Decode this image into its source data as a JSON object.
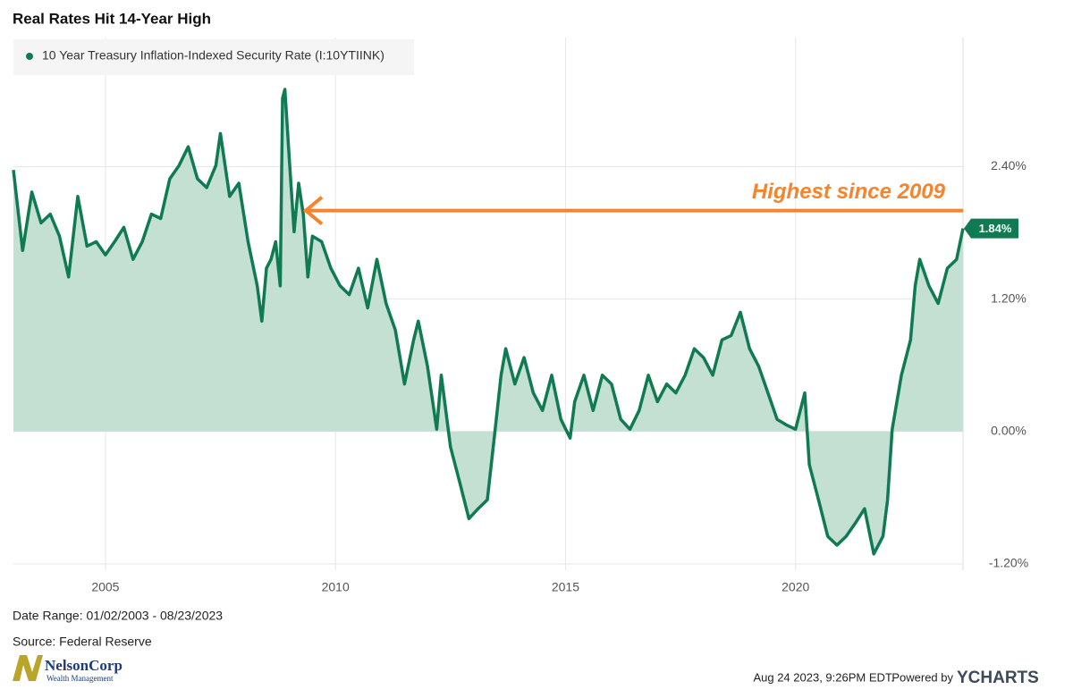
{
  "chart_data": {
    "type": "line",
    "title": "Real Rates Hit 14-Year High",
    "annotation": "Highest since 2009",
    "series": [
      {
        "name": "10 Year Treasury Inflation-Indexed Security Rate (I:10YTIINK)",
        "color": "#107a53",
        "fill": "#c3e0d3",
        "x": [
          2003.0,
          2003.2,
          2003.4,
          2003.6,
          2003.8,
          2004.0,
          2004.2,
          2004.4,
          2004.6,
          2004.8,
          2005.0,
          2005.2,
          2005.4,
          2005.6,
          2005.8,
          2006.0,
          2006.2,
          2006.4,
          2006.6,
          2006.8,
          2007.0,
          2007.2,
          2007.4,
          2007.5,
          2007.7,
          2007.9,
          2008.1,
          2008.3,
          2008.4,
          2008.5,
          2008.6,
          2008.7,
          2008.8,
          2008.85,
          2008.9,
          2009.0,
          2009.1,
          2009.2,
          2009.3,
          2009.4,
          2009.5,
          2009.7,
          2009.9,
          2010.1,
          2010.3,
          2010.5,
          2010.7,
          2010.9,
          2011.1,
          2011.3,
          2011.5,
          2011.7,
          2011.8,
          2012.0,
          2012.2,
          2012.3,
          2012.5,
          2012.7,
          2012.9,
          2013.1,
          2013.3,
          2013.45,
          2013.6,
          2013.7,
          2013.9,
          2014.1,
          2014.3,
          2014.5,
          2014.7,
          2014.9,
          2015.1,
          2015.2,
          2015.4,
          2015.6,
          2015.8,
          2016.0,
          2016.2,
          2016.4,
          2016.6,
          2016.8,
          2017.0,
          2017.2,
          2017.4,
          2017.6,
          2017.8,
          2018.0,
          2018.2,
          2018.4,
          2018.6,
          2018.8,
          2019.0,
          2019.2,
          2019.4,
          2019.6,
          2019.8,
          2020.0,
          2020.2,
          2020.3,
          2020.5,
          2020.7,
          2020.9,
          2021.1,
          2021.3,
          2021.5,
          2021.7,
          2021.9,
          2022.0,
          2022.1,
          2022.3,
          2022.5,
          2022.6,
          2022.7,
          2022.9,
          2023.1,
          2023.3,
          2023.5,
          2023.64
        ],
        "values": [
          2.37,
          1.64,
          2.17,
          1.89,
          1.97,
          1.77,
          1.4,
          2.13,
          1.68,
          1.72,
          1.6,
          1.72,
          1.85,
          1.56,
          1.72,
          1.97,
          1.93,
          2.29,
          2.41,
          2.58,
          2.29,
          2.21,
          2.41,
          2.7,
          2.13,
          2.25,
          1.72,
          1.32,
          1.0,
          1.48,
          1.56,
          1.72,
          1.32,
          3.02,
          3.1,
          2.45,
          1.81,
          2.25,
          1.97,
          1.4,
          1.77,
          1.72,
          1.48,
          1.32,
          1.24,
          1.48,
          1.12,
          1.56,
          1.16,
          0.92,
          0.43,
          0.83,
          1.0,
          0.59,
          0.02,
          0.51,
          -0.14,
          -0.46,
          -0.79,
          -0.7,
          -0.62,
          -0.06,
          0.51,
          0.75,
          0.43,
          0.67,
          0.35,
          0.19,
          0.51,
          0.11,
          -0.06,
          0.27,
          0.51,
          0.19,
          0.51,
          0.43,
          0.11,
          0.02,
          0.19,
          0.51,
          0.27,
          0.43,
          0.35,
          0.51,
          0.75,
          0.67,
          0.51,
          0.83,
          0.87,
          1.08,
          0.75,
          0.59,
          0.35,
          0.11,
          0.06,
          0.02,
          0.35,
          -0.3,
          -0.62,
          -0.95,
          -1.03,
          -0.95,
          -0.83,
          -0.7,
          -1.11,
          -0.95,
          -0.62,
          0.02,
          0.51,
          0.83,
          1.32,
          1.56,
          1.32,
          1.16,
          1.48,
          1.56,
          1.84
        ],
        "end_label": "1.84%"
      }
    ],
    "xlim": [
      2003.0,
      2023.64
    ],
    "xticks": [
      2005,
      2010,
      2015,
      2020
    ],
    "ylim": [
      -1.257,
      3.57
    ],
    "yticks": [
      {
        "value": 2.4,
        "label": "2.40%"
      },
      {
        "value": 1.2,
        "label": "1.20%"
      },
      {
        "value": 0,
        "label": "0.00%"
      },
      {
        "value": -1.2,
        "label": "-1.20%"
      }
    ],
    "grid": true
  },
  "footer": {
    "date_range": "Date Range: 01/02/2003 - 08/23/2023",
    "source": "Source: Federal Reserve",
    "timestamp": "Aug 24 2023, 9:26PM EDT.",
    "powered_by": "Powered by",
    "brand": "YCHARTS",
    "logo_name": "NelsonCorp",
    "logo_sub": "Wealth Management"
  }
}
